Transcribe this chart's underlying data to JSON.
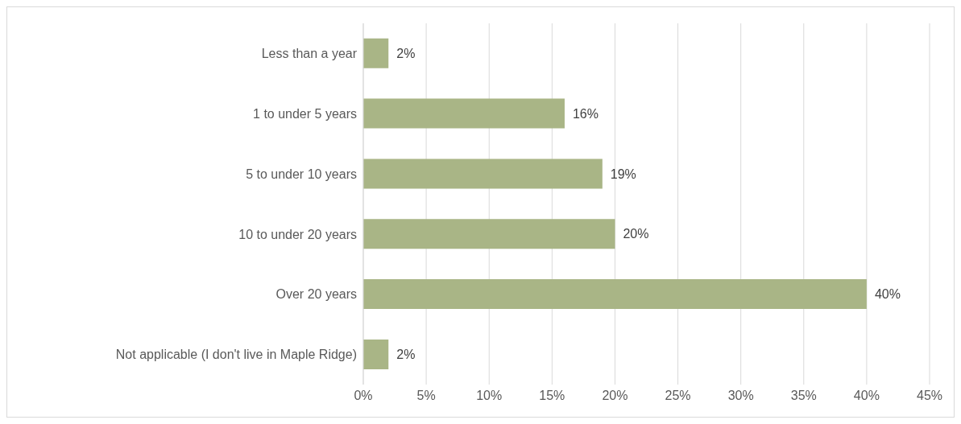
{
  "chart_data": {
    "type": "bar",
    "orientation": "horizontal",
    "categories": [
      "Less than a year",
      "1 to under 5 years",
      "5 to under 10 years",
      "10 to under 20 years",
      "Over 20 years",
      "Not applicable (I don't live in Maple Ridge)"
    ],
    "values": [
      2,
      16,
      19,
      20,
      40,
      2
    ],
    "value_labels": [
      "2%",
      "16%",
      "19%",
      "20%",
      "40%",
      "2%"
    ],
    "color": "#a9b586",
    "xlim": [
      0,
      45
    ],
    "xticks": [
      {
        "value": 0,
        "label": "0%"
      },
      {
        "value": 5,
        "label": "5%"
      },
      {
        "value": 10,
        "label": "10%"
      },
      {
        "value": 15,
        "label": "15%"
      },
      {
        "value": 20,
        "label": "20%"
      },
      {
        "value": 25,
        "label": "25%"
      },
      {
        "value": 30,
        "label": "30%"
      },
      {
        "value": 35,
        "label": "35%"
      },
      {
        "value": 40,
        "label": "40%"
      },
      {
        "value": 45,
        "label": "45%"
      }
    ],
    "grid": "x"
  }
}
